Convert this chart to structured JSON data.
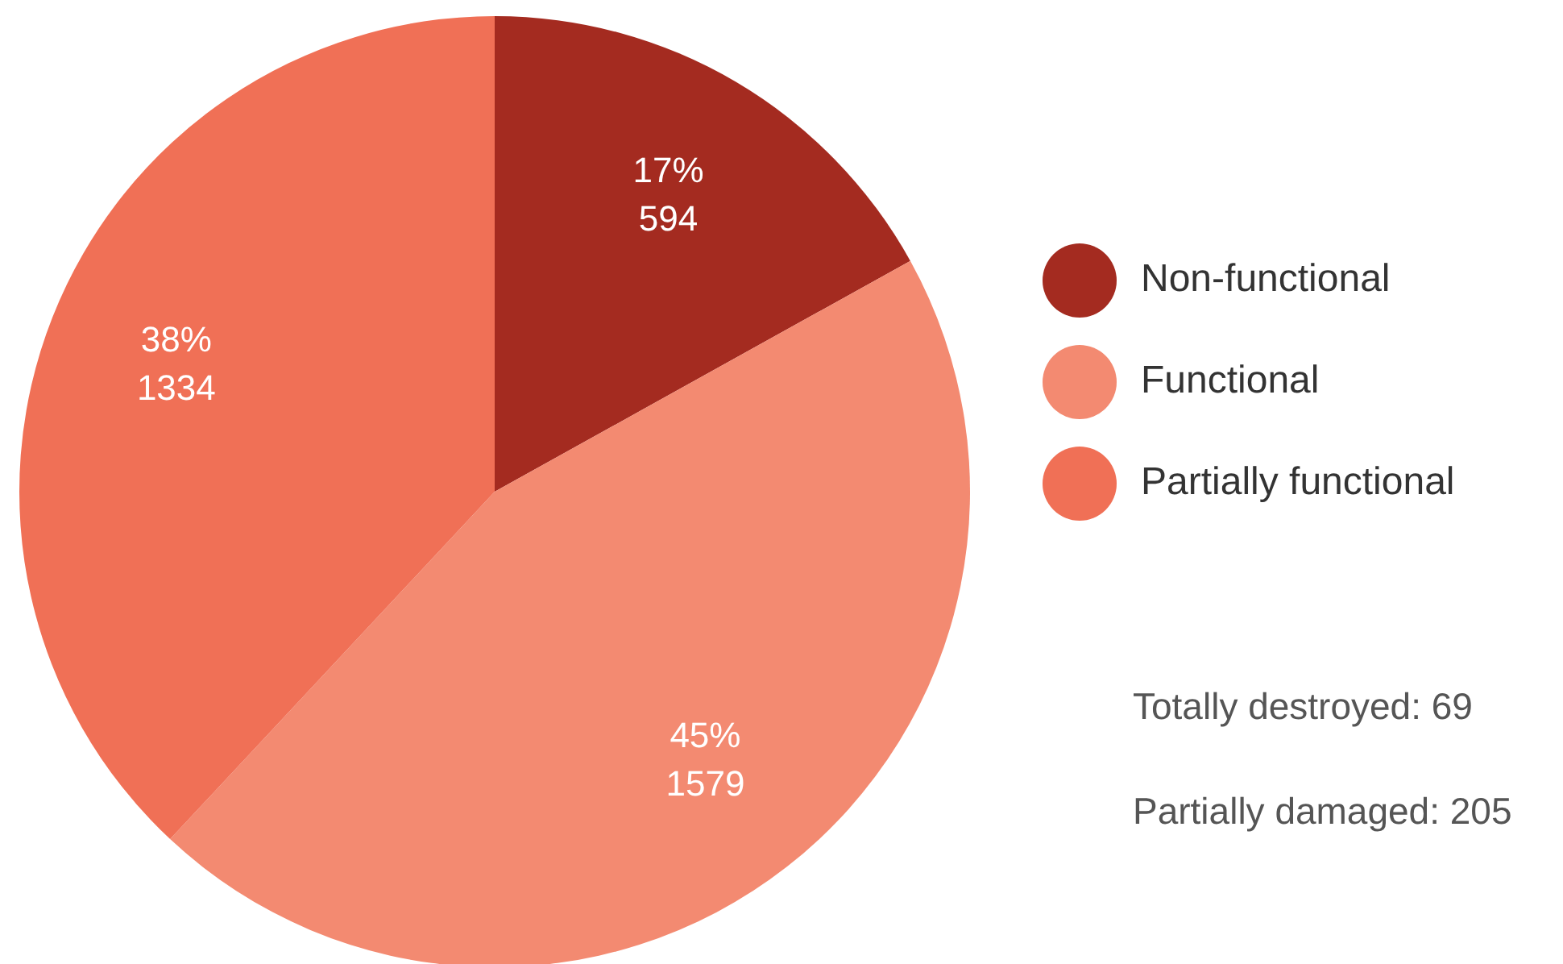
{
  "chart_data": {
    "type": "pie",
    "categories": [
      "Non-functional",
      "Functional",
      "Partially functional"
    ],
    "values": [
      594,
      1579,
      1334
    ],
    "colors": [
      "#a42b20",
      "#f38a71",
      "#f07056"
    ],
    "value_labels": [
      "17%\n594",
      "45%\n1579",
      "38%\n1334"
    ],
    "legend": "right",
    "annotations": [
      "Totally destroyed: 69",
      "Partially damaged: 205"
    ]
  }
}
